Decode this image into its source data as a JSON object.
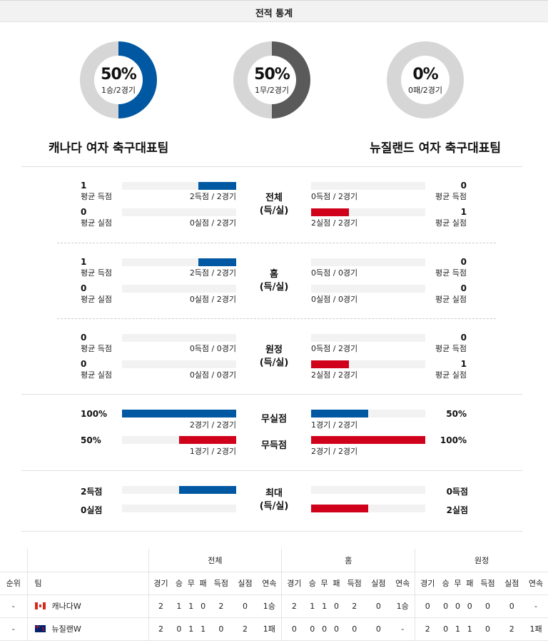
{
  "header": {
    "title": "전적 통계"
  },
  "donuts": [
    {
      "pct": "50%",
      "sub": "1승/2경기",
      "fraction": 0.5,
      "color": "#0058a3"
    },
    {
      "pct": "50%",
      "sub": "1무/2경기",
      "fraction": 0.5,
      "color": "#5a5a5a"
    },
    {
      "pct": "0%",
      "sub": "0패/2경기",
      "fraction": 0.0,
      "color": "#5a5a5a"
    }
  ],
  "teams": {
    "home": "캐나다 여자 축구대표팀",
    "away": "뉴질랜드 여자 축구대표팀"
  },
  "colors": {
    "home_bar": "#0058a3",
    "away_bar": "#d0021b",
    "track": "#f2f2f2"
  },
  "sections": [
    {
      "center": [
        "전체",
        "(득/실)"
      ],
      "rows": [
        {
          "l_num": "1",
          "l_lbl": "평균 득점",
          "l_frac": "2득점 / 2경기",
          "l_fill": 0.33,
          "r_num": "0",
          "r_lbl": "평균 득점",
          "r_frac": "0득점 / 2경기",
          "r_fill": 0.0
        },
        {
          "l_num": "0",
          "l_lbl": "평균 실점",
          "l_frac": "0실점 / 2경기",
          "l_fill": 0.0,
          "r_num": "1",
          "r_lbl": "평균 실점",
          "r_frac": "2실점 / 2경기",
          "r_fill": 0.33
        }
      ]
    },
    {
      "center": [
        "홈",
        "(득/실)"
      ],
      "rows": [
        {
          "l_num": "1",
          "l_lbl": "평균 득점",
          "l_frac": "2득점 / 2경기",
          "l_fill": 0.33,
          "r_num": "0",
          "r_lbl": "평균 득점",
          "r_frac": "0득점 / 0경기",
          "r_fill": 0.0
        },
        {
          "l_num": "0",
          "l_lbl": "평균 실점",
          "l_frac": "0실점 / 2경기",
          "l_fill": 0.0,
          "r_num": "0",
          "r_lbl": "평균 실점",
          "r_frac": "0실점 / 0경기",
          "r_fill": 0.0
        }
      ]
    },
    {
      "center": [
        "원정",
        "(득/실)"
      ],
      "rows": [
        {
          "l_num": "0",
          "l_lbl": "평균 득점",
          "l_frac": "0득점 / 0경기",
          "l_fill": 0.0,
          "r_num": "0",
          "r_lbl": "평균 득점",
          "r_frac": "0득점 / 2경기",
          "r_fill": 0.0
        },
        {
          "l_num": "0",
          "l_lbl": "평균 실점",
          "l_frac": "0실점 / 0경기",
          "l_fill": 0.0,
          "r_num": "1",
          "r_lbl": "평균 실점",
          "r_frac": "2실점 / 2경기",
          "r_fill": 0.33
        }
      ]
    }
  ],
  "clean": {
    "rows": [
      {
        "center": "무실점",
        "l_num": "100%",
        "l_frac": "2경기 / 2경기",
        "l_fill": 1.0,
        "l_color": "blue",
        "r_num": "50%",
        "r_frac": "1경기 / 2경기",
        "r_fill": 0.5,
        "r_color": "blue"
      },
      {
        "center": "무득점",
        "l_num": "50%",
        "l_frac": "1경기 / 2경기",
        "l_fill": 0.5,
        "l_color": "red",
        "r_num": "100%",
        "r_frac": "2경기 / 2경기",
        "r_fill": 1.0,
        "r_color": "red"
      }
    ]
  },
  "max": {
    "center": [
      "최대",
      "(득/실)"
    ],
    "rows": [
      {
        "l_num": "2득점",
        "l_fill": 0.5,
        "r_num": "0득점",
        "r_fill": 0.0
      },
      {
        "l_num": "0실점",
        "l_fill": 0.0,
        "r_num": "2실점",
        "r_fill": 0.5
      }
    ]
  },
  "table": {
    "groups": [
      "전체",
      "홈",
      "원정"
    ],
    "rank_header": "순위",
    "team_header": "팀",
    "cols": [
      "경기",
      "승",
      "무",
      "패",
      "득점",
      "실점",
      "연속"
    ],
    "rows": [
      {
        "rank": "-",
        "flag": "canada-flag-icon",
        "team": "캐나다W",
        "total": [
          "2",
          "1",
          "1",
          "0",
          "2",
          "0",
          "1승"
        ],
        "home": [
          "2",
          "1",
          "1",
          "0",
          "2",
          "0",
          "1승"
        ],
        "away": [
          "0",
          "0",
          "0",
          "0",
          "0",
          "0",
          "-"
        ]
      },
      {
        "rank": "-",
        "flag": "new-zealand-flag-icon",
        "team": "뉴질랜W",
        "total": [
          "2",
          "0",
          "1",
          "1",
          "0",
          "2",
          "1패"
        ],
        "home": [
          "0",
          "0",
          "0",
          "0",
          "0",
          "0",
          "-"
        ],
        "away": [
          "2",
          "0",
          "1",
          "1",
          "0",
          "2",
          "1패"
        ]
      }
    ]
  }
}
